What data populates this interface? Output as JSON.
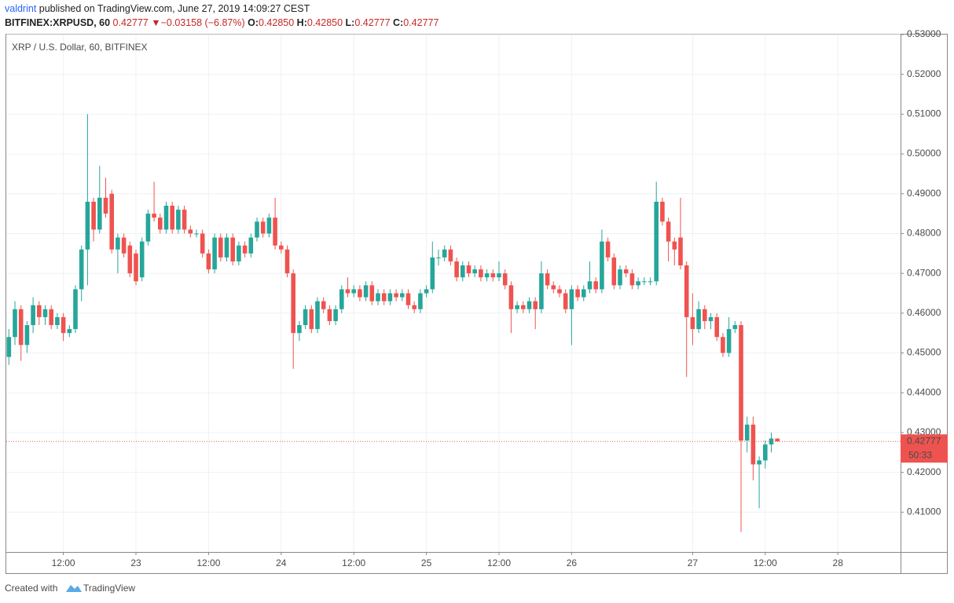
{
  "header": {
    "author": "valdrint",
    "published": "published on TradingView.com, June 27, 2019 14:09:27 CEST",
    "symbol": "BITFINEX:XRPUSD, 60",
    "last": "0.42777",
    "arrow": "▼",
    "change": "−0.03158 (−6.87%)",
    "o_label": "O:",
    "o": "0.42850",
    "h_label": "H:",
    "h": "0.42850",
    "l_label": "L:",
    "l": "0.42777",
    "c_label": "C:",
    "c": "0.42777"
  },
  "chart_data": {
    "type": "candlestick",
    "title": "XRP / U.S. Dollar, 60, BITFINEX",
    "up_color": "#26a69a",
    "down_color": "#ef5350",
    "grid": true,
    "ylim": [
      0.4,
      0.53
    ],
    "yticks": [
      {
        "value": 0.41,
        "label": "0.41000"
      },
      {
        "value": 0.42,
        "label": "0.42000"
      },
      {
        "value": 0.43,
        "label": "0.43000"
      },
      {
        "value": 0.44,
        "label": "0.44000"
      },
      {
        "value": 0.45,
        "label": "0.45000"
      },
      {
        "value": 0.46,
        "label": "0.46000"
      },
      {
        "value": 0.47,
        "label": "0.47000"
      },
      {
        "value": 0.48,
        "label": "0.48000"
      },
      {
        "value": 0.49,
        "label": "0.49000"
      },
      {
        "value": 0.5,
        "label": "0.50000"
      },
      {
        "value": 0.51,
        "label": "0.51000"
      },
      {
        "value": 0.52,
        "label": "0.52000"
      },
      {
        "value": 0.53,
        "label": "0.53000"
      }
    ],
    "xticks": [
      {
        "value": 9,
        "label": "12:00"
      },
      {
        "value": 21,
        "label": "23"
      },
      {
        "value": 33,
        "label": "12:00"
      },
      {
        "value": 45,
        "label": "24"
      },
      {
        "value": 57,
        "label": "12:00"
      },
      {
        "value": 69,
        "label": "25"
      },
      {
        "value": 81,
        "label": "12:00"
      },
      {
        "value": 93,
        "label": "26"
      },
      {
        "value": 113,
        "label": "27"
      },
      {
        "value": 125,
        "label": "12:00"
      },
      {
        "value": 137,
        "label": "28"
      }
    ],
    "last_price": {
      "value": 0.42777,
      "label": "0.42777"
    },
    "countdown": "50:33",
    "candles": [
      [
        0.449,
        0.456,
        0.447,
        0.454
      ],
      [
        0.454,
        0.463,
        0.452,
        0.461
      ],
      [
        0.461,
        0.462,
        0.448,
        0.452
      ],
      [
        0.452,
        0.458,
        0.45,
        0.457
      ],
      [
        0.457,
        0.464,
        0.455,
        0.462
      ],
      [
        0.462,
        0.463,
        0.457,
        0.459
      ],
      [
        0.459,
        0.462,
        0.457,
        0.461
      ],
      [
        0.461,
        0.462,
        0.456,
        0.457
      ],
      [
        0.457,
        0.46,
        0.456,
        0.459
      ],
      [
        0.459,
        0.46,
        0.453,
        0.455
      ],
      [
        0.455,
        0.457,
        0.454,
        0.456
      ],
      [
        0.456,
        0.467,
        0.455,
        0.466
      ],
      [
        0.466,
        0.477,
        0.463,
        0.476
      ],
      [
        0.476,
        0.51,
        0.467,
        0.488
      ],
      [
        0.488,
        0.489,
        0.478,
        0.481
      ],
      [
        0.481,
        0.497,
        0.48,
        0.489
      ],
      [
        0.489,
        0.494,
        0.484,
        0.485
      ],
      [
        0.49,
        0.491,
        0.475,
        0.476
      ],
      [
        0.476,
        0.48,
        0.47,
        0.479
      ],
      [
        0.479,
        0.48,
        0.474,
        0.475
      ],
      [
        0.477,
        0.478,
        0.469,
        0.47
      ],
      [
        0.475,
        0.476,
        0.467,
        0.468
      ],
      [
        0.469,
        0.479,
        0.468,
        0.478
      ],
      [
        0.478,
        0.486,
        0.477,
        0.485
      ],
      [
        0.485,
        0.493,
        0.483,
        0.484
      ],
      [
        0.484,
        0.485,
        0.48,
        0.481
      ],
      [
        0.481,
        0.488,
        0.48,
        0.487
      ],
      [
        0.487,
        0.488,
        0.48,
        0.481
      ],
      [
        0.481,
        0.487,
        0.48,
        0.486
      ],
      [
        0.486,
        0.487,
        0.48,
        0.481
      ],
      [
        0.481,
        0.482,
        0.479,
        0.48
      ],
      [
        0.48,
        0.481,
        0.479,
        0.48
      ],
      [
        0.48,
        0.481,
        0.474,
        0.475
      ],
      [
        0.475,
        0.476,
        0.47,
        0.471
      ],
      [
        0.471,
        0.48,
        0.47,
        0.479
      ],
      [
        0.479,
        0.48,
        0.473,
        0.474
      ],
      [
        0.474,
        0.48,
        0.473,
        0.479
      ],
      [
        0.479,
        0.48,
        0.472,
        0.473
      ],
      [
        0.473,
        0.478,
        0.472,
        0.477
      ],
      [
        0.477,
        0.478,
        0.474,
        0.475
      ],
      [
        0.475,
        0.48,
        0.474,
        0.479
      ],
      [
        0.479,
        0.484,
        0.478,
        0.483
      ],
      [
        0.483,
        0.484,
        0.479,
        0.48
      ],
      [
        0.48,
        0.485,
        0.479,
        0.484
      ],
      [
        0.484,
        0.489,
        0.476,
        0.477
      ],
      [
        0.477,
        0.478,
        0.475,
        0.476
      ],
      [
        0.476,
        0.477,
        0.469,
        0.47
      ],
      [
        0.47,
        0.471,
        0.446,
        0.455
      ],
      [
        0.455,
        0.458,
        0.453,
        0.457
      ],
      [
        0.457,
        0.462,
        0.456,
        0.461
      ],
      [
        0.461,
        0.462,
        0.455,
        0.456
      ],
      [
        0.456,
        0.464,
        0.455,
        0.463
      ],
      [
        0.463,
        0.464,
        0.46,
        0.461
      ],
      [
        0.461,
        0.462,
        0.457,
        0.458
      ],
      [
        0.458,
        0.462,
        0.457,
        0.461
      ],
      [
        0.461,
        0.467,
        0.46,
        0.466
      ],
      [
        0.466,
        0.469,
        0.464,
        0.465
      ],
      [
        0.465,
        0.467,
        0.464,
        0.466
      ],
      [
        0.466,
        0.467,
        0.463,
        0.464
      ],
      [
        0.464,
        0.468,
        0.463,
        0.467
      ],
      [
        0.467,
        0.468,
        0.462,
        0.463
      ],
      [
        0.463,
        0.466,
        0.462,
        0.465
      ],
      [
        0.465,
        0.466,
        0.462,
        0.463
      ],
      [
        0.463,
        0.466,
        0.462,
        0.465
      ],
      [
        0.465,
        0.466,
        0.463,
        0.464
      ],
      [
        0.464,
        0.466,
        0.463,
        0.465
      ],
      [
        0.465,
        0.466,
        0.461,
        0.462
      ],
      [
        0.462,
        0.463,
        0.46,
        0.461
      ],
      [
        0.461,
        0.466,
        0.46,
        0.465
      ],
      [
        0.465,
        0.467,
        0.464,
        0.466
      ],
      [
        0.466,
        0.478,
        0.465,
        0.474
      ],
      [
        0.474,
        0.476,
        0.472,
        0.474
      ],
      [
        0.474,
        0.477,
        0.473,
        0.476
      ],
      [
        0.476,
        0.477,
        0.472,
        0.473
      ],
      [
        0.473,
        0.474,
        0.468,
        0.469
      ],
      [
        0.469,
        0.473,
        0.468,
        0.472
      ],
      [
        0.472,
        0.473,
        0.469,
        0.47
      ],
      [
        0.47,
        0.472,
        0.469,
        0.471
      ],
      [
        0.471,
        0.472,
        0.468,
        0.469
      ],
      [
        0.469,
        0.471,
        0.468,
        0.47
      ],
      [
        0.47,
        0.471,
        0.468,
        0.469
      ],
      [
        0.469,
        0.473,
        0.468,
        0.47
      ],
      [
        0.47,
        0.471,
        0.466,
        0.467
      ],
      [
        0.467,
        0.468,
        0.455,
        0.461
      ],
      [
        0.461,
        0.463,
        0.46,
        0.462
      ],
      [
        0.462,
        0.463,
        0.46,
        0.461
      ],
      [
        0.461,
        0.464,
        0.46,
        0.463
      ],
      [
        0.463,
        0.464,
        0.456,
        0.461
      ],
      [
        0.461,
        0.473,
        0.46,
        0.47
      ],
      [
        0.47,
        0.471,
        0.466,
        0.467
      ],
      [
        0.467,
        0.468,
        0.465,
        0.466
      ],
      [
        0.466,
        0.467,
        0.464,
        0.465
      ],
      [
        0.465,
        0.466,
        0.46,
        0.461
      ],
      [
        0.461,
        0.467,
        0.452,
        0.466
      ],
      [
        0.466,
        0.467,
        0.463,
        0.464
      ],
      [
        0.464,
        0.467,
        0.463,
        0.466
      ],
      [
        0.466,
        0.473,
        0.465,
        0.468
      ],
      [
        0.468,
        0.469,
        0.465,
        0.466
      ],
      [
        0.466,
        0.481,
        0.465,
        0.478
      ],
      [
        0.478,
        0.479,
        0.473,
        0.474
      ],
      [
        0.474,
        0.475,
        0.466,
        0.467
      ],
      [
        0.467,
        0.472,
        0.466,
        0.471
      ],
      [
        0.471,
        0.472,
        0.469,
        0.47
      ],
      [
        0.47,
        0.471,
        0.466,
        0.467
      ],
      [
        0.467,
        0.469,
        0.466,
        0.468
      ],
      [
        0.468,
        0.469,
        0.467,
        0.468
      ],
      [
        0.468,
        0.469,
        0.467,
        0.468
      ],
      [
        0.468,
        0.493,
        0.467,
        0.488
      ],
      [
        0.488,
        0.489,
        0.482,
        0.483
      ],
      [
        0.483,
        0.484,
        0.473,
        0.478
      ],
      [
        0.478,
        0.479,
        0.472,
        0.476
      ],
      [
        0.479,
        0.489,
        0.471,
        0.472
      ],
      [
        0.472,
        0.473,
        0.444,
        0.459
      ],
      [
        0.459,
        0.465,
        0.452,
        0.456
      ],
      [
        0.456,
        0.463,
        0.455,
        0.461
      ],
      [
        0.461,
        0.462,
        0.456,
        0.458
      ],
      [
        0.458,
        0.46,
        0.456,
        0.459
      ],
      [
        0.459,
        0.46,
        0.453,
        0.454
      ],
      [
        0.454,
        0.455,
        0.449,
        0.45
      ],
      [
        0.45,
        0.459,
        0.449,
        0.456
      ],
      [
        0.456,
        0.458,
        0.455,
        0.457
      ],
      [
        0.457,
        0.458,
        0.405,
        0.428
      ],
      [
        0.428,
        0.434,
        0.425,
        0.432
      ],
      [
        0.432,
        0.434,
        0.418,
        0.422
      ],
      [
        0.422,
        0.424,
        0.411,
        0.423
      ],
      [
        0.423,
        0.428,
        0.421,
        0.427
      ],
      [
        0.427,
        0.43,
        0.425,
        0.4285
      ],
      [
        0.4285,
        0.4285,
        0.42777,
        0.42777
      ]
    ]
  },
  "footer": {
    "text": "Created with",
    "brand": "TradingView"
  }
}
